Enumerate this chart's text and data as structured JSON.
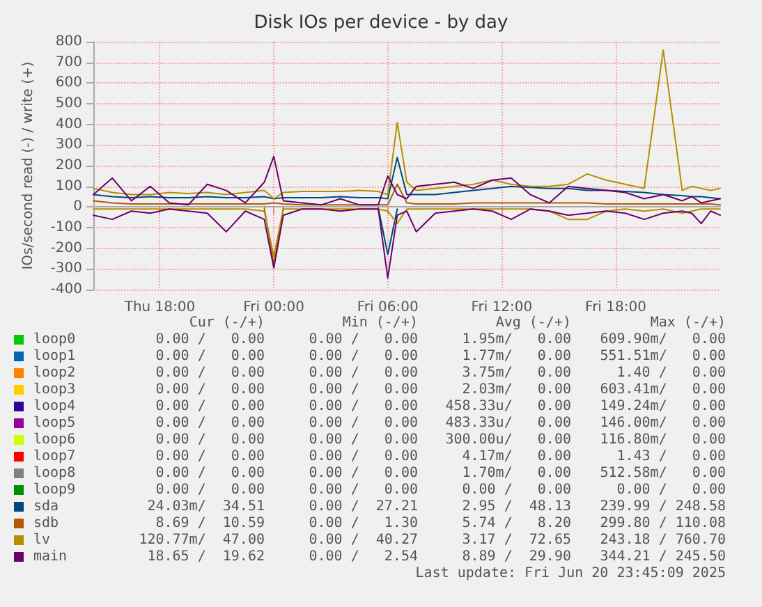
{
  "chart_data": {
    "type": "line",
    "title": "Disk IOs per device - by day",
    "ylabel": "IOs/second read (-) / write (+)",
    "x": [
      "2025-06-19T14:30",
      "2025-06-19T15:30",
      "2025-06-19T16:30",
      "2025-06-19T17:30",
      "2025-06-19T18:30",
      "2025-06-19T19:30",
      "2025-06-19T20:30",
      "2025-06-19T21:30",
      "2025-06-19T22:30",
      "2025-06-19T23:30",
      "2025-06-20T00:00",
      "2025-06-20T00:30",
      "2025-06-20T01:30",
      "2025-06-20T02:30",
      "2025-06-20T03:30",
      "2025-06-20T04:30",
      "2025-06-20T05:30",
      "2025-06-20T06:00",
      "2025-06-20T06:30",
      "2025-06-20T07:00",
      "2025-06-20T07:30",
      "2025-06-20T08:30",
      "2025-06-20T09:30",
      "2025-06-20T10:30",
      "2025-06-20T11:30",
      "2025-06-20T12:30",
      "2025-06-20T13:30",
      "2025-06-20T14:30",
      "2025-06-20T15:30",
      "2025-06-20T16:30",
      "2025-06-20T17:30",
      "2025-06-20T18:30",
      "2025-06-20T19:30",
      "2025-06-20T20:30",
      "2025-06-20T21:30",
      "2025-06-20T22:00",
      "2025-06-20T22:30",
      "2025-06-20T23:00",
      "2025-06-20T23:30"
    ],
    "xlim": [
      "2025-06-19T14:30",
      "2025-06-20T23:30"
    ],
    "xticks": [
      {
        "value": "2025-06-19T18:00",
        "label": "Thu 18:00"
      },
      {
        "value": "2025-06-20T00:00",
        "label": "Fri 00:00"
      },
      {
        "value": "2025-06-20T06:00",
        "label": "Fri 06:00"
      },
      {
        "value": "2025-06-20T12:00",
        "label": "Fri 12:00"
      },
      {
        "value": "2025-06-20T18:00",
        "label": "Fri 18:00"
      }
    ],
    "ylim": [
      -400,
      800
    ],
    "yticks": [
      -400,
      -300,
      -200,
      -100,
      0,
      100,
      200,
      300,
      400,
      500,
      600,
      700,
      800
    ],
    "grid": true,
    "legend": "bottom left",
    "marker": "none",
    "line_style": "solid",
    "series": [
      {
        "name": "loop0",
        "color": "#00cc00",
        "values": [
          null,
          null,
          null,
          null,
          null,
          null,
          null,
          null,
          null,
          null,
          null,
          null,
          null,
          null,
          null,
          null,
          null,
          null,
          null,
          null,
          null,
          null,
          null,
          null,
          null,
          null,
          null,
          null,
          null,
          null,
          null,
          null,
          null,
          null,
          null,
          null,
          null,
          null,
          null
        ]
      },
      {
        "name": "loop1",
        "color": "#0066b3",
        "values": [
          null,
          null,
          null,
          null,
          null,
          null,
          null,
          null,
          null,
          null,
          null,
          null,
          null,
          null,
          null,
          null,
          null,
          null,
          null,
          null,
          null,
          null,
          null,
          null,
          null,
          null,
          null,
          null,
          null,
          null,
          null,
          null,
          null,
          null,
          null,
          null,
          null,
          null,
          null
        ]
      },
      {
        "name": "loop2",
        "color": "#ff8000",
        "values": [
          null,
          null,
          null,
          null,
          null,
          null,
          null,
          null,
          null,
          null,
          null,
          null,
          null,
          null,
          null,
          null,
          null,
          null,
          null,
          null,
          null,
          null,
          null,
          null,
          null,
          null,
          null,
          null,
          null,
          null,
          null,
          null,
          null,
          null,
          null,
          null,
          null,
          null,
          null
        ]
      },
      {
        "name": "loop3",
        "color": "#ffcc00",
        "values": [
          null,
          null,
          null,
          null,
          null,
          null,
          null,
          null,
          null,
          null,
          null,
          null,
          null,
          null,
          null,
          null,
          null,
          null,
          null,
          null,
          null,
          null,
          null,
          null,
          null,
          null,
          null,
          null,
          null,
          null,
          null,
          null,
          null,
          null,
          null,
          null,
          null,
          null,
          null
        ]
      },
      {
        "name": "loop4",
        "color": "#330099",
        "values": [
          null,
          null,
          null,
          null,
          null,
          null,
          null,
          null,
          null,
          null,
          null,
          null,
          null,
          null,
          null,
          null,
          null,
          null,
          null,
          null,
          null,
          null,
          null,
          null,
          null,
          null,
          null,
          null,
          null,
          null,
          null,
          null,
          null,
          null,
          null,
          null,
          null,
          null,
          null
        ]
      },
      {
        "name": "loop5",
        "color": "#990099",
        "values": [
          null,
          null,
          null,
          null,
          null,
          null,
          null,
          null,
          null,
          null,
          null,
          null,
          null,
          null,
          null,
          null,
          null,
          null,
          null,
          null,
          null,
          null,
          null,
          null,
          null,
          null,
          null,
          null,
          null,
          null,
          null,
          null,
          null,
          null,
          null,
          null,
          null,
          null,
          null
        ]
      },
      {
        "name": "loop6",
        "color": "#ccff00",
        "values": [
          null,
          null,
          null,
          null,
          null,
          null,
          null,
          null,
          null,
          null,
          null,
          null,
          null,
          null,
          null,
          null,
          null,
          null,
          null,
          null,
          null,
          null,
          null,
          null,
          null,
          null,
          null,
          null,
          null,
          null,
          null,
          null,
          null,
          null,
          null,
          null,
          null,
          null,
          null
        ]
      },
      {
        "name": "loop7",
        "color": "#ff0000",
        "values": [
          null,
          null,
          null,
          null,
          null,
          null,
          null,
          null,
          null,
          null,
          null,
          null,
          null,
          null,
          null,
          null,
          null,
          null,
          null,
          null,
          null,
          null,
          null,
          null,
          null,
          null,
          null,
          null,
          null,
          null,
          null,
          null,
          null,
          null,
          null,
          null,
          null,
          null,
          null
        ]
      },
      {
        "name": "loop8",
        "color": "#808080",
        "values": [
          null,
          null,
          null,
          null,
          null,
          null,
          null,
          null,
          null,
          null,
          null,
          null,
          null,
          null,
          null,
          null,
          null,
          null,
          null,
          null,
          null,
          null,
          null,
          null,
          null,
          null,
          null,
          null,
          null,
          null,
          null,
          null,
          null,
          null,
          null,
          null,
          null,
          null,
          null
        ]
      },
      {
        "name": "loop9",
        "color": "#008f00",
        "values": [
          null,
          null,
          null,
          null,
          null,
          null,
          null,
          null,
          null,
          null,
          null,
          null,
          null,
          null,
          null,
          null,
          null,
          null,
          null,
          null,
          null,
          null,
          null,
          null,
          null,
          null,
          null,
          null,
          null,
          null,
          null,
          null,
          null,
          null,
          null,
          null,
          null,
          null,
          null
        ]
      },
      {
        "name": "sda",
        "color": "#00487d",
        "values": [
          60,
          50,
          45,
          50,
          45,
          45,
          50,
          45,
          45,
          50,
          40,
          45,
          45,
          45,
          50,
          45,
          45,
          40,
          240,
          60,
          60,
          60,
          70,
          80,
          90,
          100,
          95,
          90,
          90,
          80,
          80,
          75,
          70,
          60,
          55,
          50,
          50,
          45,
          40
        ]
      },
      {
        "color": "#00487d",
        "values": [
          null,
          null,
          null,
          null,
          null,
          null,
          null,
          null,
          null,
          null,
          null,
          null,
          null,
          null,
          null,
          null,
          -5,
          -230,
          -10,
          null,
          null,
          null,
          null,
          null,
          null,
          null,
          null,
          null,
          null,
          null,
          null,
          null,
          null,
          null,
          null,
          null,
          null,
          null,
          null
        ]
      },
      {
        "name": "sdb",
        "color": "#b35a00",
        "values": [
          30,
          20,
          15,
          15,
          15,
          15,
          15,
          15,
          15,
          15,
          20,
          15,
          10,
          10,
          10,
          10,
          10,
          10,
          110,
          20,
          15,
          15,
          15,
          20,
          20,
          20,
          20,
          20,
          20,
          20,
          15,
          15,
          15,
          15,
          15,
          15,
          15,
          15,
          10
        ]
      },
      {
        "color": "#b35a00",
        "values": [
          null,
          null,
          null,
          null,
          null,
          null,
          null,
          null,
          null,
          -5,
          -280,
          -5,
          null,
          null,
          null,
          null,
          null,
          null,
          null,
          null,
          null,
          null,
          null,
          null,
          null,
          null,
          null,
          null,
          null,
          null,
          null,
          null,
          null,
          null,
          null,
          null,
          null,
          null,
          null
        ]
      },
      {
        "name": "lv",
        "color": "#b38f00",
        "values": [
          90,
          70,
          60,
          60,
          70,
          65,
          70,
          60,
          70,
          80,
          40,
          70,
          75,
          75,
          75,
          80,
          75,
          60,
          410,
          120,
          80,
          90,
          100,
          110,
          130,
          110,
          100,
          100,
          110,
          160,
          130,
          110,
          90,
          760,
          80,
          100,
          90,
          80,
          90
        ]
      },
      {
        "color": "#b38f00",
        "values": [
          -10,
          -10,
          -10,
          -10,
          -10,
          -10,
          -10,
          -10,
          -10,
          -20,
          -240,
          -10,
          -10,
          -10,
          -10,
          -10,
          -10,
          -20,
          -80,
          -10,
          -10,
          -10,
          -10,
          -10,
          -10,
          -10,
          -10,
          -20,
          -60,
          -60,
          -20,
          -10,
          -20,
          -10,
          -30,
          -20,
          -10,
          -10,
          -10
        ]
      },
      {
        "name": "main",
        "color": "#6b006b",
        "values": [
          60,
          140,
          30,
          100,
          20,
          10,
          110,
          80,
          20,
          120,
          245,
          30,
          20,
          10,
          40,
          10,
          10,
          150,
          60,
          40,
          100,
          110,
          120,
          90,
          130,
          140,
          60,
          20,
          100,
          90,
          80,
          70,
          40,
          60,
          30,
          50,
          20,
          30,
          40
        ]
      },
      {
        "color": "#6b006b",
        "values": [
          -40,
          -60,
          -20,
          -30,
          -10,
          -20,
          -30,
          -120,
          -20,
          -60,
          -295,
          -40,
          -10,
          -10,
          -20,
          -10,
          -10,
          -344,
          -40,
          -20,
          -120,
          -30,
          -20,
          -10,
          -20,
          -60,
          -10,
          -20,
          -40,
          -30,
          -20,
          -30,
          -60,
          -30,
          -20,
          -30,
          -80,
          -20,
          -40
        ]
      }
    ],
    "annotations": [
      "Cur (-/+)",
      "Min (-/+)",
      "Avg (-/+)",
      "Max (-/+)",
      "0.00 /   0.00",
      "0.00 /   0.00",
      "1.95m/   0.00",
      "609.90m/   0.00",
      "0.00 /   0.00",
      "0.00 /   0.00",
      "1.77m/   0.00",
      "551.51m/   0.00",
      "0.00 /   0.00",
      "0.00 /   0.00",
      "3.75m/   0.00",
      "1.40 /   0.00",
      "0.00 /   0.00",
      "0.00 /   0.00",
      "2.03m/   0.00",
      "603.41m/   0.00",
      "0.00 /   0.00",
      "0.00 /   0.00",
      "458.33u/   0.00",
      "149.24m/   0.00",
      "0.00 /   0.00",
      "0.00 /   0.00",
      "483.33u/   0.00",
      "146.00m/   0.00",
      "0.00 /   0.00",
      "0.00 /   0.00",
      "300.00u/   0.00",
      "116.80m/   0.00",
      "0.00 /   0.00",
      "0.00 /   0.00",
      "4.17m/   0.00",
      "1.43 /   0.00",
      "0.00 /   0.00",
      "0.00 /   0.00",
      "1.70m/   0.00",
      "512.58m/   0.00",
      "0.00 /   0.00",
      "0.00 /   0.00",
      "0.00 /   0.00",
      "0.00 /   0.00",
      "24.03m/  34.51",
      "0.00 /  27.21",
      "2.95 /  48.13",
      "239.99 / 248.58",
      "8.69 /  10.59",
      "0.00 /   1.30",
      "5.74 /   8.20",
      "299.80 / 110.08",
      "120.77m/  47.00",
      "0.00 /  40.27",
      "3.17 /  72.65",
      "243.18 / 760.70",
      "18.65 /  19.62",
      "0.00 /   2.54",
      "8.89 /  29.90",
      "344.21 / 245.50",
      "Last update: Fri Jun 20 23:45:09 2025"
    ]
  }
}
